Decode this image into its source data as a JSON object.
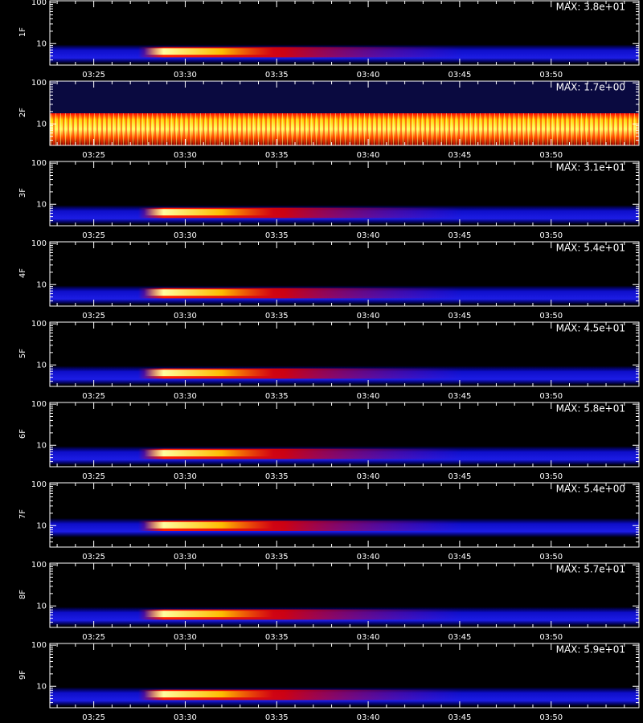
{
  "chart_data": [
    {
      "type": "heatmap",
      "ylabel": "1F",
      "annotation": "MAX: 3.8e+01",
      "log_y": true,
      "ylim": [
        3,
        110
      ],
      "yticks": [
        10,
        100
      ],
      "yticks_minor": [
        4,
        5,
        6,
        7,
        8,
        9,
        20,
        30,
        40,
        50,
        60,
        70,
        80,
        90
      ],
      "xlim": [
        22.6,
        54.8
      ],
      "xticks": [
        {
          "value": 25,
          "label": "03:25"
        },
        {
          "value": 30,
          "label": "03:30"
        },
        {
          "value": 35,
          "label": "03:35"
        },
        {
          "value": 40,
          "label": "03:40"
        },
        {
          "value": 45,
          "label": "03:45"
        },
        {
          "value": 50,
          "label": "03:50"
        }
      ],
      "xticks_minor": [
        23,
        24,
        26,
        27,
        28,
        29,
        31,
        32,
        33,
        34,
        36,
        37,
        38,
        39,
        41,
        42,
        43,
        44,
        46,
        47,
        48,
        49,
        51,
        52,
        53,
        54
      ]
    },
    {
      "type": "heatmap",
      "ylabel": "2F",
      "annotation": "MAX: 1.7e+00",
      "log_y": true,
      "ylim": [
        3,
        110
      ],
      "yticks": [
        10,
        100
      ],
      "yticks_minor": [
        4,
        5,
        6,
        7,
        8,
        9,
        20,
        30,
        40,
        50,
        60,
        70,
        80,
        90
      ],
      "xlim": [
        22.6,
        54.8
      ],
      "xticks": [
        {
          "value": 25,
          "label": "03:25"
        },
        {
          "value": 30,
          "label": "03:30"
        },
        {
          "value": 35,
          "label": "03:35"
        },
        {
          "value": 40,
          "label": "03:40"
        },
        {
          "value": 45,
          "label": "03:45"
        },
        {
          "value": 50,
          "label": "03:50"
        }
      ],
      "xticks_minor": [
        23,
        24,
        26,
        27,
        28,
        29,
        31,
        32,
        33,
        34,
        36,
        37,
        38,
        39,
        41,
        42,
        43,
        44,
        46,
        47,
        48,
        49,
        51,
        52,
        53,
        54
      ]
    },
    {
      "type": "heatmap",
      "ylabel": "3F",
      "annotation": "MAX: 3.1e+01",
      "log_y": true,
      "ylim": [
        3,
        110
      ],
      "yticks": [
        10,
        100
      ],
      "yticks_minor": [
        4,
        5,
        6,
        7,
        8,
        9,
        20,
        30,
        40,
        50,
        60,
        70,
        80,
        90
      ],
      "xlim": [
        22.6,
        54.8
      ],
      "xticks": [
        {
          "value": 25,
          "label": "03:25"
        },
        {
          "value": 30,
          "label": "03:30"
        },
        {
          "value": 35,
          "label": "03:35"
        },
        {
          "value": 40,
          "label": "03:40"
        },
        {
          "value": 45,
          "label": "03:45"
        },
        {
          "value": 50,
          "label": "03:50"
        }
      ],
      "xticks_minor": [
        23,
        24,
        26,
        27,
        28,
        29,
        31,
        32,
        33,
        34,
        36,
        37,
        38,
        39,
        41,
        42,
        43,
        44,
        46,
        47,
        48,
        49,
        51,
        52,
        53,
        54
      ]
    },
    {
      "type": "heatmap",
      "ylabel": "4F",
      "annotation": "MAX: 5.4e+01",
      "log_y": true,
      "ylim": [
        3,
        110
      ],
      "yticks": [
        10,
        100
      ],
      "yticks_minor": [
        4,
        5,
        6,
        7,
        8,
        9,
        20,
        30,
        40,
        50,
        60,
        70,
        80,
        90
      ],
      "xlim": [
        22.6,
        54.8
      ],
      "xticks": [
        {
          "value": 25,
          "label": "03:25"
        },
        {
          "value": 30,
          "label": "03:30"
        },
        {
          "value": 35,
          "label": "03:35"
        },
        {
          "value": 40,
          "label": "03:40"
        },
        {
          "value": 45,
          "label": "03:45"
        },
        {
          "value": 50,
          "label": "03:50"
        }
      ],
      "xticks_minor": [
        23,
        24,
        26,
        27,
        28,
        29,
        31,
        32,
        33,
        34,
        36,
        37,
        38,
        39,
        41,
        42,
        43,
        44,
        46,
        47,
        48,
        49,
        51,
        52,
        53,
        54
      ]
    },
    {
      "type": "heatmap",
      "ylabel": "5F",
      "annotation": "MAX: 4.5e+01",
      "log_y": true,
      "ylim": [
        3,
        110
      ],
      "yticks": [
        10,
        100
      ],
      "yticks_minor": [
        4,
        5,
        6,
        7,
        8,
        9,
        20,
        30,
        40,
        50,
        60,
        70,
        80,
        90
      ],
      "xlim": [
        22.6,
        54.8
      ],
      "xticks": [
        {
          "value": 25,
          "label": "03:25"
        },
        {
          "value": 30,
          "label": "03:30"
        },
        {
          "value": 35,
          "label": "03:35"
        },
        {
          "value": 40,
          "label": "03:40"
        },
        {
          "value": 45,
          "label": "03:45"
        },
        {
          "value": 50,
          "label": "03:50"
        }
      ],
      "xticks_minor": [
        23,
        24,
        26,
        27,
        28,
        29,
        31,
        32,
        33,
        34,
        36,
        37,
        38,
        39,
        41,
        42,
        43,
        44,
        46,
        47,
        48,
        49,
        51,
        52,
        53,
        54
      ]
    },
    {
      "type": "heatmap",
      "ylabel": "6F",
      "annotation": "MAX: 5.8e+01",
      "log_y": true,
      "ylim": [
        3,
        110
      ],
      "yticks": [
        10,
        100
      ],
      "yticks_minor": [
        4,
        5,
        6,
        7,
        8,
        9,
        20,
        30,
        40,
        50,
        60,
        70,
        80,
        90
      ],
      "xlim": [
        22.6,
        54.8
      ],
      "xticks": [
        {
          "value": 25,
          "label": "03:25"
        },
        {
          "value": 30,
          "label": "03:30"
        },
        {
          "value": 35,
          "label": "03:35"
        },
        {
          "value": 40,
          "label": "03:40"
        },
        {
          "value": 45,
          "label": "03:45"
        },
        {
          "value": 50,
          "label": "03:50"
        }
      ],
      "xticks_minor": [
        23,
        24,
        26,
        27,
        28,
        29,
        31,
        32,
        33,
        34,
        36,
        37,
        38,
        39,
        41,
        42,
        43,
        44,
        46,
        47,
        48,
        49,
        51,
        52,
        53,
        54
      ]
    },
    {
      "type": "heatmap",
      "ylabel": "7F",
      "annotation": "MAX: 5.4e+00",
      "log_y": true,
      "ylim": [
        3,
        110
      ],
      "yticks": [
        10,
        100
      ],
      "yticks_minor": [
        4,
        5,
        6,
        7,
        8,
        9,
        20,
        30,
        40,
        50,
        60,
        70,
        80,
        90
      ],
      "xlim": [
        22.6,
        54.8
      ],
      "xticks": [
        {
          "value": 25,
          "label": "03:25"
        },
        {
          "value": 30,
          "label": "03:30"
        },
        {
          "value": 35,
          "label": "03:35"
        },
        {
          "value": 40,
          "label": "03:40"
        },
        {
          "value": 45,
          "label": "03:45"
        },
        {
          "value": 50,
          "label": "03:50"
        }
      ],
      "xticks_minor": [
        23,
        24,
        26,
        27,
        28,
        29,
        31,
        32,
        33,
        34,
        36,
        37,
        38,
        39,
        41,
        42,
        43,
        44,
        46,
        47,
        48,
        49,
        51,
        52,
        53,
        54
      ]
    },
    {
      "type": "heatmap",
      "ylabel": "8F",
      "annotation": "MAX: 5.7e+01",
      "log_y": true,
      "ylim": [
        3,
        110
      ],
      "yticks": [
        10,
        100
      ],
      "yticks_minor": [
        4,
        5,
        6,
        7,
        8,
        9,
        20,
        30,
        40,
        50,
        60,
        70,
        80,
        90
      ],
      "xlim": [
        22.6,
        54.8
      ],
      "xticks": [
        {
          "value": 25,
          "label": "03:25"
        },
        {
          "value": 30,
          "label": "03:30"
        },
        {
          "value": 35,
          "label": "03:35"
        },
        {
          "value": 40,
          "label": "03:40"
        },
        {
          "value": 45,
          "label": "03:45"
        },
        {
          "value": 50,
          "label": "03:50"
        }
      ],
      "xticks_minor": [
        23,
        24,
        26,
        27,
        28,
        29,
        31,
        32,
        33,
        34,
        36,
        37,
        38,
        39,
        41,
        42,
        43,
        44,
        46,
        47,
        48,
        49,
        51,
        52,
        53,
        54
      ]
    },
    {
      "type": "heatmap",
      "ylabel": "9F",
      "annotation": "MAX: 5.9e+01",
      "log_y": true,
      "ylim": [
        3,
        110
      ],
      "yticks": [
        10,
        100
      ],
      "yticks_minor": [
        4,
        5,
        6,
        7,
        8,
        9,
        20,
        30,
        40,
        50,
        60,
        70,
        80,
        90
      ],
      "xlim": [
        22.6,
        54.8
      ],
      "xticks": [
        {
          "value": 25,
          "label": "03:25"
        },
        {
          "value": 30,
          "label": "03:30"
        },
        {
          "value": 35,
          "label": "03:35"
        },
        {
          "value": 40,
          "label": "03:40"
        },
        {
          "value": 45,
          "label": "03:45"
        },
        {
          "value": 50,
          "label": "03:50"
        }
      ],
      "xticks_minor": [
        23,
        24,
        26,
        27,
        28,
        29,
        31,
        32,
        33,
        34,
        36,
        37,
        38,
        39,
        41,
        42,
        43,
        44,
        46,
        47,
        48,
        49,
        51,
        52,
        53,
        54
      ]
    }
  ]
}
